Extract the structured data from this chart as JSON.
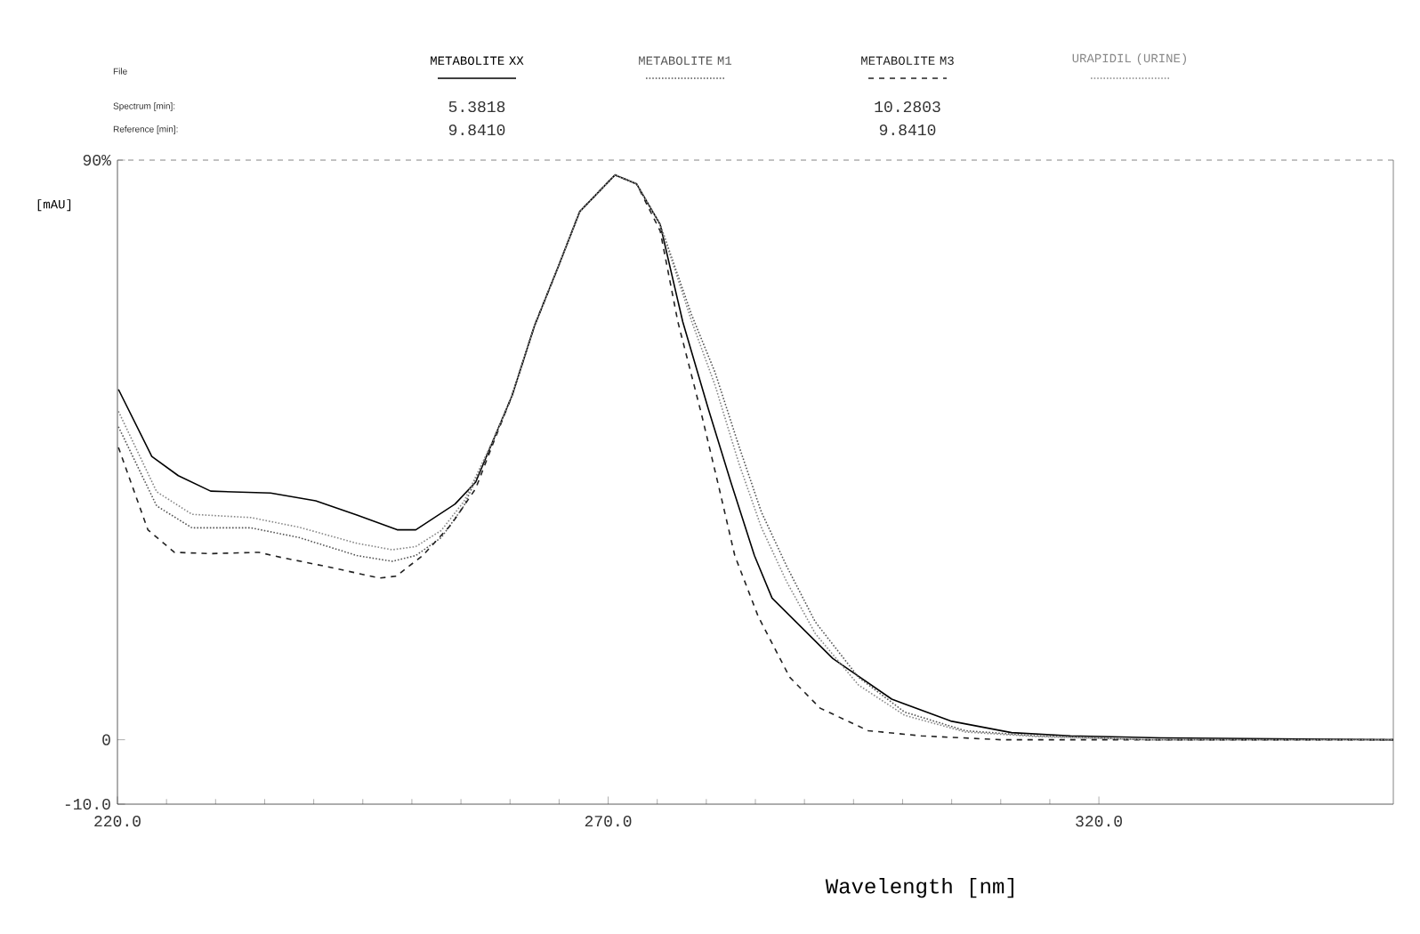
{
  "chart_data": {
    "type": "line",
    "xlabel": "Wavelength [nm]",
    "ylabel": "[mAU]",
    "xlim": [
      220,
      350
    ],
    "ylim": [
      -10,
      90
    ],
    "xticks": [
      {
        "value": 220,
        "label": "220.0"
      },
      {
        "value": 270,
        "label": "270.0"
      },
      {
        "value": 320,
        "label": "320.0"
      }
    ],
    "yticks": [
      {
        "value": -10,
        "label": "-10.0"
      },
      0,
      {
        "value": 90,
        "label": "90%"
      }
    ],
    "legend": "top",
    "annotations": [
      "File",
      "Spectrum [min]:",
      "Reference [min]:",
      "5.3818",
      "9.8410",
      "10.2803",
      "9.8410"
    ],
    "series": [
      {
        "name": "METABOLITE XX",
        "color": "#000000",
        "line_style": "solid",
        "x": [
          220.1,
          223.5,
          226.2,
          229.5,
          235.6,
          240.2,
          244.4,
          248.5,
          250.4,
          254.4,
          256.5,
          258.4,
          260.2,
          262.5,
          264.9,
          267.1,
          270.7,
          272.9,
          275.3,
          277.6,
          280.2,
          282.5,
          284.9,
          286.7,
          292.9,
          298.9,
          304.9,
          311.1,
          317.1,
          326.2,
          350
        ],
        "values": [
          54.4,
          44,
          41,
          38.6,
          38.3,
          37.1,
          34.9,
          32.6,
          32.6,
          36.6,
          40,
          46.9,
          53.4,
          64.3,
          73.4,
          82,
          87.7,
          86.3,
          80,
          64.9,
          51.4,
          40,
          28.6,
          22,
          12.6,
          6.3,
          2.9,
          1.1,
          0.6,
          0.3,
          0
        ]
      },
      {
        "name": "METABOLITE M1",
        "color": "#555555",
        "line_style": "dotted",
        "x": [
          220.1,
          224,
          227.6,
          233.6,
          238.5,
          244.4,
          248,
          250.4,
          253,
          255.3,
          258.4,
          260.2,
          262.5,
          264.9,
          267.1,
          270.7,
          272.9,
          275.3,
          278.5,
          280.9,
          283.3,
          285.6,
          288.2,
          291.1,
          295.5,
          300.2,
          306.4,
          313.6,
          325,
          350
        ],
        "values": [
          48.6,
          36.3,
          32.9,
          32.9,
          31.4,
          28.6,
          27.7,
          28.6,
          31.4,
          36.3,
          46.9,
          53.4,
          64.3,
          73.4,
          82,
          87.7,
          86.3,
          80,
          66,
          57,
          45.7,
          35.4,
          26.9,
          18.3,
          9.7,
          4.3,
          1.4,
          0.6,
          0,
          0
        ]
      },
      {
        "name": "METABOLITE M3",
        "color": "#222222",
        "line_style": "dashed",
        "x": [
          220.1,
          223.1,
          225.8,
          229.5,
          234.4,
          236.7,
          241.3,
          246.7,
          248.4,
          251.1,
          254,
          256.5,
          258.4,
          260.2,
          262.5,
          264.9,
          267.1,
          270.7,
          272.9,
          275.3,
          277.1,
          279.5,
          281.3,
          282.9,
          285.3,
          288.5,
          291.6,
          296.5,
          301.9,
          310,
          350
        ],
        "values": [
          45.4,
          32.6,
          29.1,
          28.9,
          29.1,
          28.3,
          26.9,
          25.1,
          25.4,
          28.6,
          33.4,
          39,
          46.5,
          53.4,
          64.3,
          73.4,
          82,
          87.7,
          86.3,
          79,
          64.9,
          50.6,
          39.1,
          28.6,
          19.1,
          9.7,
          4.9,
          1.4,
          0.6,
          0,
          0
        ]
      },
      {
        "name": "URAPIDIL (URINE)",
        "color": "#888888",
        "line_style": "dotted",
        "x": [
          220.1,
          224,
          227.6,
          233.6,
          238.5,
          244.4,
          248,
          250.4,
          253,
          255.3,
          258.4,
          260.2,
          262.5,
          264.9,
          267.1,
          270.7,
          272.9,
          275.3,
          278.5,
          280.9,
          283.3,
          285.6,
          288.2,
          291.1,
          295.5,
          300.2,
          306.4,
          313.6,
          325,
          350
        ],
        "values": [
          51,
          38.5,
          35,
          34.5,
          33,
          30.5,
          29.5,
          30,
          32.5,
          37,
          46.9,
          53.4,
          64.3,
          73.4,
          82,
          87.7,
          86.3,
          80,
          65,
          55,
          43,
          33,
          24.5,
          16.5,
          8.5,
          3.8,
          1.2,
          0.5,
          0,
          0
        ]
      }
    ]
  }
}
